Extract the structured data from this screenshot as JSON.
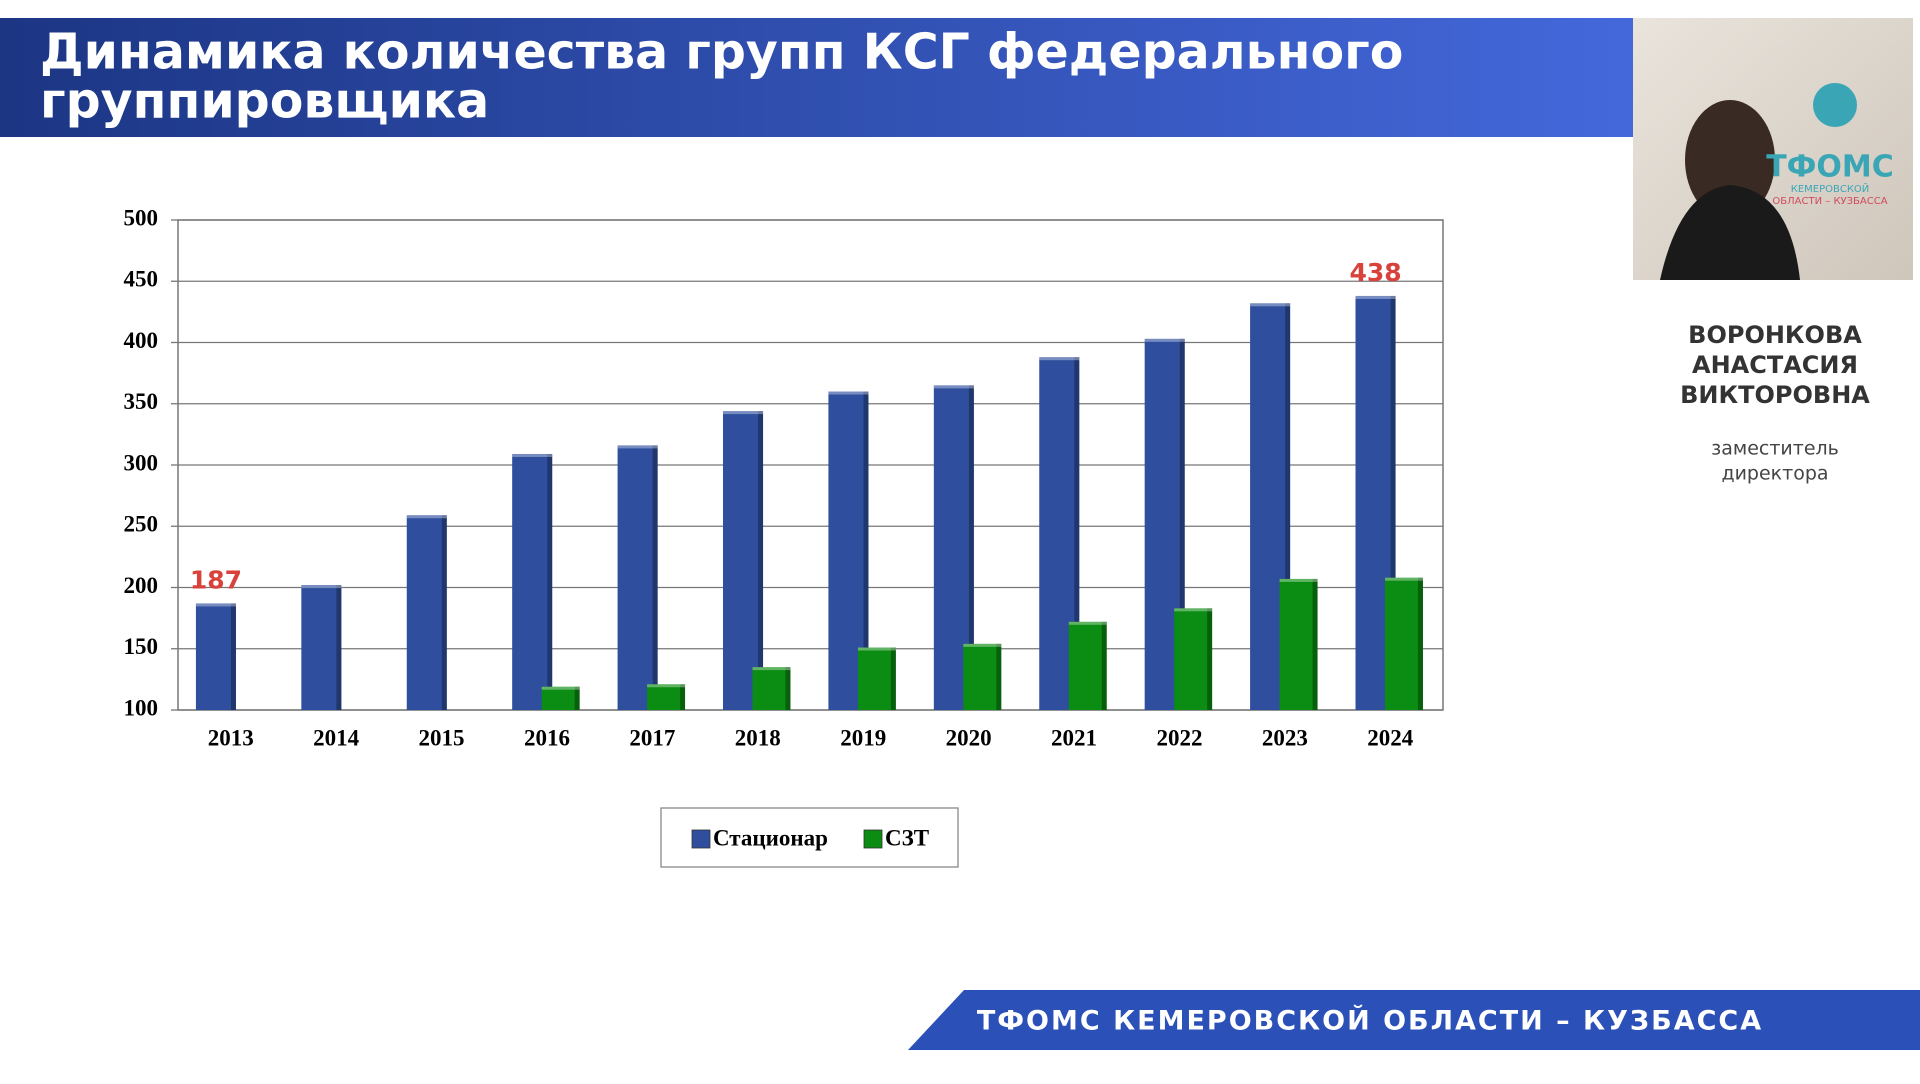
{
  "header": {
    "title_lines": [
      "Динамика количества групп КСГ федерального",
      "группировщика"
    ]
  },
  "chart_data": {
    "type": "bar",
    "categories": [
      "2013",
      "2014",
      "2015",
      "2016",
      "2017",
      "2018",
      "2019",
      "2020",
      "2021",
      "2022",
      "2023",
      "2024"
    ],
    "series": [
      {
        "name": "Стационар",
        "color": "#2f4f9e",
        "values": [
          187,
          202,
          259,
          309,
          316,
          344,
          360,
          365,
          388,
          403,
          432,
          438
        ],
        "labeled_indices": [
          0,
          11
        ]
      },
      {
        "name": "СЗТ",
        "color": "#0b8c12",
        "values": [
          null,
          null,
          null,
          119,
          121,
          135,
          151,
          154,
          172,
          183,
          207,
          208
        ]
      }
    ],
    "ylim": [
      100,
      500
    ],
    "yticks": [
      100,
      150,
      200,
      250,
      300,
      350,
      400,
      450,
      500
    ],
    "grid": true
  },
  "video": {
    "logo": "ТФОМС",
    "logo_sub": [
      "КЕМЕРОВСКОЙ",
      "ОБЛАСТИ – КУЗБАССА"
    ]
  },
  "speaker": {
    "name_lines": [
      "ВОРОНКОВА",
      "АНАСТАСИЯ",
      "ВИКТОРОВНА"
    ],
    "position_lines": [
      "заместитель",
      "директора"
    ]
  },
  "footer": "ТФОМС КЕМЕРОВСКОЙ ОБЛАСТИ – КУЗБАССА"
}
